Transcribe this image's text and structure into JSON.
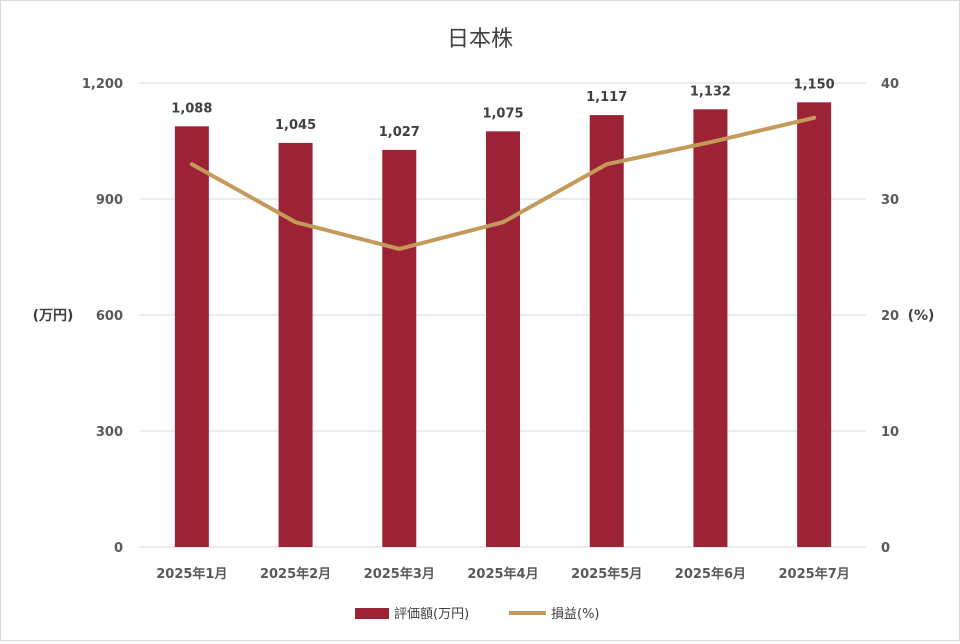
{
  "chart_data": {
    "type": "bar",
    "title": "日本株",
    "categories": [
      "2025年1月",
      "2025年2月",
      "2025年3月",
      "2025年4月",
      "2025年5月",
      "2025年6月",
      "2025年7月"
    ],
    "series": [
      {
        "name": "評価額(万円)",
        "type": "bar",
        "axis": "left",
        "color": "#9b2335",
        "values": [
          1088,
          1045,
          1027,
          1075,
          1117,
          1132,
          1150
        ],
        "labels": [
          "1,088",
          "1,045",
          "1,027",
          "1,075",
          "1,117",
          "1,132",
          "1,150"
        ]
      },
      {
        "name": "損益(%)",
        "type": "line",
        "axis": "right",
        "color": "#c49a5a",
        "values": [
          33,
          28,
          25.7,
          28,
          33,
          34.9,
          37
        ]
      }
    ],
    "y_left": {
      "label": "(万円)",
      "range": [
        0,
        1200
      ],
      "ticks": [
        0,
        300,
        600,
        900,
        1200
      ],
      "tick_labels": [
        "0",
        "300",
        "600",
        "900",
        "1,200"
      ]
    },
    "y_right": {
      "label": "(%)",
      "range": [
        0,
        40
      ],
      "ticks": [
        0,
        10,
        20,
        30,
        40
      ],
      "tick_labels": [
        "0",
        "10",
        "20",
        "30",
        "40"
      ]
    },
    "grid": true,
    "legend": "bottom"
  }
}
